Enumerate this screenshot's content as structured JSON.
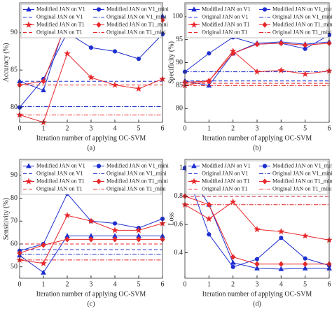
{
  "chart_data": [
    {
      "type": "line",
      "caption": "(a)",
      "ylabel": "Accuracy (%)",
      "xlabel": "Iteration number of applying OC-SVM",
      "x": [
        0,
        1,
        2,
        3,
        4,
        5,
        6
      ],
      "xlim": [
        0,
        6
      ],
      "xticks": [
        0,
        1,
        2,
        3,
        4,
        5,
        6
      ],
      "ylim": [
        78,
        94
      ],
      "yticks": [
        80,
        85,
        90
      ],
      "series": [
        {
          "name": "Modified JAN on V1",
          "color": "#1f2fd0",
          "marker": "triangle",
          "dash": "solid",
          "values": [
            83.5,
            82.3,
            92,
            91.8,
            92.2,
            91.8,
            92.2
          ]
        },
        {
          "name": "Modified JAN on V1_mini",
          "color": "#1f2fd0",
          "marker": "circle",
          "dash": "solid",
          "values": [
            80,
            83.8,
            90,
            88,
            87.5,
            86.5,
            89.8
          ]
        },
        {
          "name": "Original JAN on V1",
          "color": "#1f2fd0",
          "marker": "none",
          "dash": "dashed",
          "values": [
            83.5,
            83.5,
            83.5,
            83.5,
            83.5,
            83.5,
            83.5
          ]
        },
        {
          "name": "Original JAN on V1_mini",
          "color": "#1f2fd0",
          "marker": "none",
          "dash": "dashdot",
          "values": [
            80.1,
            80.1,
            80.1,
            80.1,
            80.1,
            80.1,
            80.1
          ]
        },
        {
          "name": "Modified JAN on T1",
          "color": "#e8282b",
          "marker": "star",
          "dash": "solid",
          "values": [
            79,
            78,
            87.2,
            84,
            83,
            82.5,
            83.8
          ]
        },
        {
          "name": "Modified JAN on T1_mini",
          "color": "#e8282b",
          "marker": "diamond",
          "dash": "solid",
          "values": [
            83,
            83.5,
            91.5,
            91.5,
            91.8,
            91.3,
            91.7
          ]
        },
        {
          "name": "Original JAN on T1",
          "color": "#e8282b",
          "marker": "none",
          "dash": "dashed",
          "values": [
            83,
            83,
            83,
            83,
            83,
            83,
            83
          ]
        },
        {
          "name": "Original JAN on T1_mini",
          "color": "#e8282b",
          "marker": "none",
          "dash": "dashdot",
          "values": [
            79,
            79,
            79,
            79,
            79,
            79,
            79
          ]
        }
      ]
    },
    {
      "type": "line",
      "caption": "(b)",
      "ylabel": "Specificity (%)",
      "xlabel": "Iteration number of applying OC-SVM",
      "x": [
        0,
        1,
        2,
        3,
        4,
        5,
        6
      ],
      "xlim": [
        0,
        6
      ],
      "xticks": [
        0,
        1,
        2,
        3,
        4,
        5,
        6
      ],
      "ylim": [
        77,
        103
      ],
      "yticks": [
        80,
        85,
        90,
        95,
        100
      ],
      "series": [
        {
          "name": "Modified JAN on V1",
          "color": "#1f2fd0",
          "marker": "triangle",
          "dash": "solid",
          "values": [
            86,
            85,
            92,
            94.2,
            94.5,
            94,
            94.5
          ]
        },
        {
          "name": "Modified JAN on V1_mini",
          "color": "#1f2fd0",
          "marker": "circle",
          "dash": "solid",
          "values": [
            88,
            92,
            95.5,
            94,
            94.2,
            93,
            96
          ]
        },
        {
          "name": "Original JAN on V1",
          "color": "#1f2fd0",
          "marker": "none",
          "dash": "dashed",
          "values": [
            86,
            86,
            86,
            86,
            86,
            86,
            86
          ]
        },
        {
          "name": "Original JAN on V1_mini",
          "color": "#1f2fd0",
          "marker": "none",
          "dash": "dashdot",
          "values": [
            88,
            88,
            88,
            88,
            88,
            88,
            88
          ]
        },
        {
          "name": "Modified JAN on T1",
          "color": "#e8282b",
          "marker": "star",
          "dash": "solid",
          "values": [
            85,
            86,
            92.5,
            88,
            88.3,
            87.5,
            88.2
          ]
        },
        {
          "name": "Modified JAN on T1_mini",
          "color": "#e8282b",
          "marker": "diamond",
          "dash": "solid",
          "values": [
            85.7,
            86,
            92,
            94,
            94.2,
            93.8,
            94.2
          ]
        },
        {
          "name": "Original JAN on T1",
          "color": "#e8282b",
          "marker": "none",
          "dash": "dashed",
          "values": [
            85.5,
            85.5,
            85.5,
            85.5,
            85.5,
            85.5,
            85.5
          ]
        },
        {
          "name": "Original JAN on T1_mini",
          "color": "#e8282b",
          "marker": "none",
          "dash": "dashdot",
          "values": [
            85,
            85,
            85,
            85,
            85,
            85,
            85
          ]
        }
      ]
    },
    {
      "type": "line",
      "caption": "(c)",
      "ylabel": "Sensitivity (%)",
      "xlabel": "Iteration number of applying OC-SVM",
      "x": [
        0,
        1,
        2,
        3,
        4,
        5,
        6
      ],
      "xlim": [
        0,
        6
      ],
      "xticks": [
        0,
        1,
        2,
        3,
        4,
        5,
        6
      ],
      "ylim": [
        45,
        97
      ],
      "yticks": [
        50,
        60,
        70,
        80,
        90
      ],
      "series": [
        {
          "name": "Modified JAN on V1",
          "color": "#1f2fd0",
          "marker": "triangle",
          "dash": "solid",
          "values": [
            55,
            47.5,
            63.5,
            63.5,
            63.5,
            63.5,
            63.5
          ]
        },
        {
          "name": "Modified JAN on V1_mini",
          "color": "#1f2fd0",
          "marker": "circle",
          "dash": "solid",
          "values": [
            57,
            60,
            82,
            70,
            69,
            67,
            71
          ]
        },
        {
          "name": "Original JAN on V1",
          "color": "#1f2fd0",
          "marker": "none",
          "dash": "dashed",
          "values": [
            57.5,
            57.5,
            57.5,
            57.5,
            57.5,
            57.5,
            57.5
          ]
        },
        {
          "name": "Original JAN on V1_mini",
          "color": "#1f2fd0",
          "marker": "none",
          "dash": "dashdot",
          "values": [
            55.5,
            55.5,
            55.5,
            55.5,
            55.5,
            55.5,
            55.5
          ]
        },
        {
          "name": "Modified JAN on T1",
          "color": "#e8282b",
          "marker": "star",
          "dash": "solid",
          "values": [
            53,
            51.5,
            72.5,
            70,
            66,
            66,
            69
          ]
        },
        {
          "name": "Modified JAN on T1_mini",
          "color": "#e8282b",
          "marker": "diamond",
          "dash": "solid",
          "values": [
            56,
            59.5,
            62,
            62,
            62,
            62,
            62
          ]
        },
        {
          "name": "Original JAN on T1",
          "color": "#e8282b",
          "marker": "none",
          "dash": "dashed",
          "values": [
            60,
            60,
            60,
            60,
            60,
            60,
            60
          ]
        },
        {
          "name": "Original JAN on T1_mini",
          "color": "#e8282b",
          "marker": "none",
          "dash": "dashdot",
          "values": [
            53,
            53,
            53,
            53,
            53,
            53,
            53
          ]
        }
      ]
    },
    {
      "type": "line",
      "caption": "(d)",
      "ylabel": "Loss",
      "xlabel": "Iteration number of applying OC-SVM",
      "x": [
        0,
        1,
        2,
        3,
        4,
        5,
        6
      ],
      "xlim": [
        0,
        6
      ],
      "xticks": [
        0,
        1,
        2,
        3,
        4,
        5,
        6
      ],
      "ylim": [
        0.22,
        1.06
      ],
      "yticks": [
        0.4,
        0.6,
        0.8,
        1
      ],
      "series": [
        {
          "name": "Modified JAN on V1",
          "color": "#1f2fd0",
          "marker": "triangle",
          "dash": "solid",
          "values": [
            1.0,
            0.74,
            0.33,
            0.29,
            0.285,
            0.29,
            0.29
          ]
        },
        {
          "name": "Modified JAN on V1_mini",
          "color": "#1f2fd0",
          "marker": "circle",
          "dash": "solid",
          "values": [
            1.0,
            0.53,
            0.3,
            0.355,
            0.505,
            0.36,
            0.31
          ]
        },
        {
          "name": "Original JAN on V1",
          "color": "#1f2fd0",
          "marker": "none",
          "dash": "dashed",
          "values": [
            0.8,
            0.8,
            0.8,
            0.8,
            0.8,
            0.8,
            0.8
          ]
        },
        {
          "name": "Original JAN on V1_mini",
          "color": "#1f2fd0",
          "marker": "none",
          "dash": "dashdot",
          "values": [
            1.0,
            1.0,
            1.0,
            1.0,
            1.0,
            1.0,
            1.0
          ]
        },
        {
          "name": "Modified JAN on T1",
          "color": "#e8282b",
          "marker": "star",
          "dash": "solid",
          "values": [
            0.74,
            0.64,
            0.76,
            0.565,
            0.55,
            0.52,
            0.49
          ]
        },
        {
          "name": "Modified JAN on T1_mini",
          "color": "#e8282b",
          "marker": "diamond",
          "dash": "solid",
          "values": [
            0.8,
            0.74,
            0.37,
            0.32,
            0.32,
            0.32,
            0.32
          ]
        },
        {
          "name": "Original JAN on T1",
          "color": "#e8282b",
          "marker": "none",
          "dash": "dashed",
          "values": [
            0.8,
            0.8,
            0.8,
            0.8,
            0.8,
            0.8,
            0.8
          ]
        },
        {
          "name": "Original JAN on T1_mini",
          "color": "#e8282b",
          "marker": "none",
          "dash": "dashdot",
          "values": [
            0.74,
            0.74,
            0.74,
            0.74,
            0.74,
            0.74,
            0.74
          ]
        }
      ]
    }
  ]
}
